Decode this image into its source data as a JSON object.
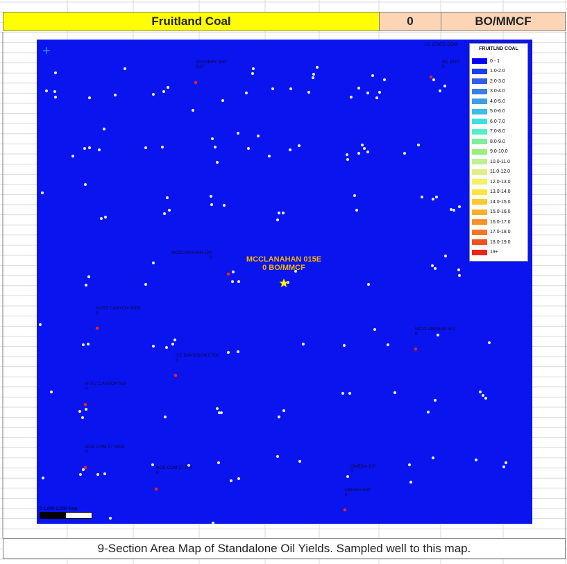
{
  "header": {
    "formation": "Fruitland Coal",
    "yield_value": "0",
    "unit": "BO/MMCF",
    "colors": {
      "formation_bg": "#ffff00",
      "value_bg": "#fbd5b5"
    }
  },
  "map": {
    "background": "#0a14ee",
    "north_arrow_icon": "compass-icon",
    "featured_well": {
      "name": "MCCLANAHAN 015E",
      "yield_text": "0 BO/MMCF",
      "icon": "star-icon",
      "color": "#ffff00"
    },
    "labeled_wells": [
      {
        "name": "ZACHERY 500",
        "value": "0.07"
      },
      {
        "name": "FC STATE COM",
        "value": ""
      },
      {
        "name": "FC STAT",
        "value": "0"
      },
      {
        "name": "MCCLANAHAN 500",
        "value": "0"
      },
      {
        "name": "KUTZ CANYON 500S",
        "value": "0"
      },
      {
        "name": "MCCLANAHAN 501",
        "value": "0"
      },
      {
        "name": "J C DAVIDSON 0 500",
        "value": "0"
      },
      {
        "name": "KUTZ CANYON 500",
        "value": "0"
      },
      {
        "name": "NCE COM 27 002A",
        "value": "0"
      },
      {
        "name": "NCE COM 27 001",
        "value": "0"
      },
      {
        "name": "OMEGA 100",
        "value": "0"
      },
      {
        "name": "OMEGA 500",
        "value": "0"
      }
    ],
    "scale_bar": {
      "text": "0     1,000    2,000 Feet"
    }
  },
  "legend": {
    "title": "FRUITLND COAL",
    "items": [
      {
        "label": "0 - 1",
        "color": "#0000ff"
      },
      {
        "label": "1.0-2.0",
        "color": "#1a3fee"
      },
      {
        "label": "2.0-3.0",
        "color": "#2f5ee8"
      },
      {
        "label": "3.0-4.0",
        "color": "#3a7ee6"
      },
      {
        "label": "4.0-5.0",
        "color": "#3c9ee6"
      },
      {
        "label": "5.0-6.0",
        "color": "#3bbde6"
      },
      {
        "label": "6.0-7.0",
        "color": "#3ddfe4"
      },
      {
        "label": "7.0-8.0",
        "color": "#55eecc"
      },
      {
        "label": "8.0-9.0",
        "color": "#7dee9a"
      },
      {
        "label": "9.0-10.0",
        "color": "#9eee7e"
      },
      {
        "label": "10.0-11.0",
        "color": "#bff090"
      },
      {
        "label": "11.0-12.0",
        "color": "#dff080"
      },
      {
        "label": "12.0-13.0",
        "color": "#f4f060"
      },
      {
        "label": "13.0-14.0",
        "color": "#fde43a"
      },
      {
        "label": "14.0-15.0",
        "color": "#fcc92a"
      },
      {
        "label": "15.0-16.0",
        "color": "#fbae28"
      },
      {
        "label": "16.0-17.0",
        "color": "#f79226"
      },
      {
        "label": "17.0-18.0",
        "color": "#f57524"
      },
      {
        "label": "18.0-19.0",
        "color": "#ef5020"
      },
      {
        "label": "19+",
        "color": "#e8261a"
      }
    ]
  },
  "caption": "9-Section Area Map of Standalone Oil Yields. Sampled well to this map."
}
